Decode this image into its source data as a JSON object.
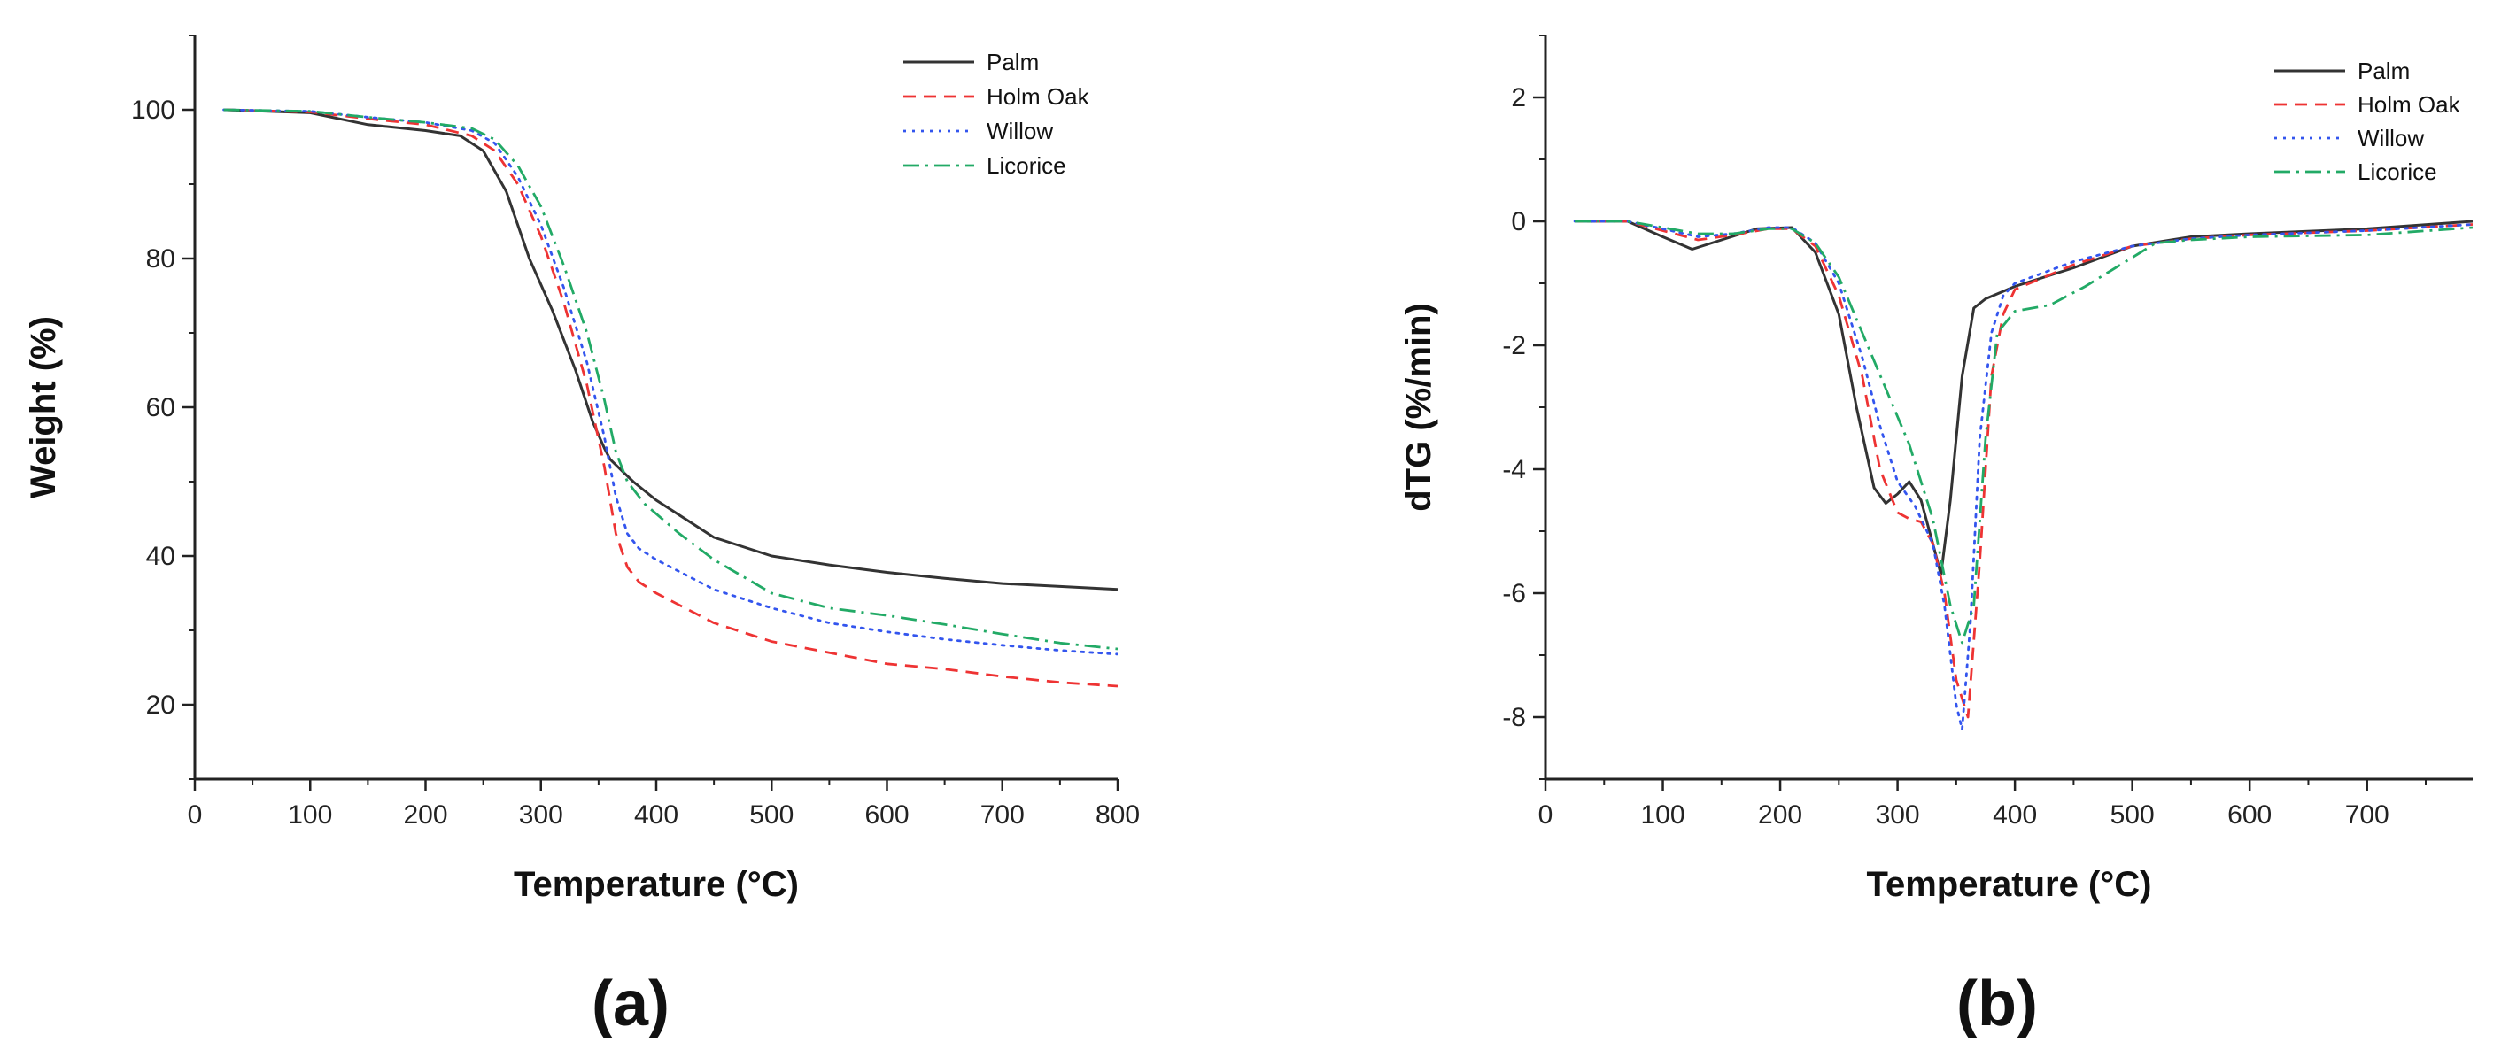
{
  "chart_data": [
    {
      "type": "line",
      "panel_label": "(a)",
      "xlabel": "Temperature (°C)",
      "ylabel": "Weight (%)",
      "xlim": [
        0,
        800
      ],
      "ylim": [
        10,
        110
      ],
      "xticks": [
        0,
        100,
        200,
        300,
        400,
        500,
        600,
        700,
        800
      ],
      "yticks": [
        20,
        40,
        60,
        80,
        100
      ],
      "grid": false,
      "legend_position": "top-right",
      "series": [
        {
          "name": "Palm",
          "color": "#333333",
          "dash": "solid",
          "x": [
            25,
            100,
            150,
            200,
            230,
            250,
            270,
            290,
            310,
            330,
            345,
            355,
            360,
            370,
            380,
            400,
            450,
            500,
            550,
            600,
            650,
            700,
            750,
            800
          ],
          "y": [
            100,
            99.6,
            98.0,
            97.2,
            96.5,
            94.5,
            89.0,
            80.0,
            73.0,
            65.0,
            58.0,
            54.5,
            53.0,
            51.5,
            50.0,
            47.5,
            42.5,
            40.0,
            38.8,
            37.8,
            37.0,
            36.3,
            35.9,
            35.5
          ]
        },
        {
          "name": "Holm Oak",
          "color": "#ee3333",
          "dash": "dashed",
          "x": [
            25,
            100,
            150,
            200,
            240,
            260,
            280,
            300,
            320,
            340,
            355,
            365,
            375,
            385,
            400,
            450,
            500,
            550,
            600,
            650,
            700,
            750,
            800
          ],
          "y": [
            100,
            99.7,
            98.8,
            98.0,
            96.5,
            94.5,
            90.0,
            83.0,
            74.0,
            63.0,
            52.0,
            43.0,
            38.5,
            36.5,
            35.0,
            31.0,
            28.5,
            27.0,
            25.5,
            24.8,
            23.8,
            23.0,
            22.5
          ]
        },
        {
          "name": "Willow",
          "color": "#3355ee",
          "dash": "dotted",
          "x": [
            25,
            100,
            150,
            200,
            240,
            260,
            280,
            300,
            320,
            340,
            355,
            365,
            375,
            385,
            400,
            450,
            500,
            550,
            600,
            650,
            700,
            750,
            800
          ],
          "y": [
            100,
            99.8,
            99.0,
            98.3,
            97.2,
            95.5,
            91.0,
            84.5,
            76.0,
            66.0,
            56.0,
            48.0,
            43.0,
            41.0,
            39.5,
            35.5,
            33.0,
            31.0,
            29.8,
            28.8,
            28.0,
            27.3,
            26.8
          ]
        },
        {
          "name": "Licorice",
          "color": "#22aa66",
          "dash": "dashdot",
          "x": [
            25,
            100,
            150,
            200,
            240,
            260,
            280,
            300,
            320,
            340,
            355,
            365,
            375,
            390,
            420,
            450,
            500,
            550,
            600,
            650,
            700,
            750,
            800
          ],
          "y": [
            100,
            99.8,
            99.0,
            98.3,
            97.5,
            96.0,
            92.5,
            87.0,
            79.0,
            70.0,
            61.0,
            54.0,
            50.0,
            47.0,
            43.0,
            39.5,
            35.0,
            33.0,
            32.0,
            30.8,
            29.5,
            28.3,
            27.5
          ]
        }
      ]
    },
    {
      "type": "line",
      "panel_label": "(b)",
      "xlabel": "Temperature (°C)",
      "ylabel": "dTG (%/min)",
      "xlim": [
        0,
        790
      ],
      "ylim": [
        -9,
        3
      ],
      "xticks": [
        0,
        100,
        200,
        300,
        400,
        500,
        600,
        700
      ],
      "yticks": [
        -8,
        -6,
        -4,
        -2,
        0,
        2
      ],
      "grid": false,
      "legend_position": "top-right",
      "series": [
        {
          "name": "Palm",
          "color": "#333333",
          "dash": "solid",
          "x": [
            25,
            70,
            100,
            125,
            150,
            180,
            210,
            230,
            250,
            265,
            280,
            290,
            300,
            310,
            320,
            330,
            337,
            345,
            355,
            365,
            375,
            400,
            450,
            500,
            550,
            600,
            700,
            790
          ],
          "y": [
            0,
            0,
            -0.25,
            -0.45,
            -0.3,
            -0.12,
            -0.1,
            -0.5,
            -1.5,
            -3.0,
            -4.3,
            -4.55,
            -4.4,
            -4.2,
            -4.5,
            -5.2,
            -5.7,
            -4.5,
            -2.5,
            -1.4,
            -1.25,
            -1.05,
            -0.75,
            -0.4,
            -0.25,
            -0.2,
            -0.12,
            0
          ]
        },
        {
          "name": "Holm Oak",
          "color": "#ee3333",
          "dash": "dashed",
          "x": [
            25,
            70,
            100,
            130,
            160,
            190,
            210,
            230,
            250,
            270,
            285,
            300,
            310,
            320,
            330,
            340,
            350,
            360,
            370,
            380,
            390,
            400,
            450,
            500,
            550,
            600,
            700,
            790
          ],
          "y": [
            0,
            0,
            -0.15,
            -0.3,
            -0.22,
            -0.12,
            -0.12,
            -0.4,
            -1.2,
            -2.5,
            -4.0,
            -4.7,
            -4.8,
            -4.85,
            -5.2,
            -6.0,
            -7.4,
            -8.0,
            -5.5,
            -2.5,
            -1.5,
            -1.1,
            -0.7,
            -0.4,
            -0.28,
            -0.22,
            -0.15,
            -0.05
          ]
        },
        {
          "name": "Willow",
          "color": "#3355ee",
          "dash": "dotted",
          "x": [
            25,
            70,
            100,
            130,
            160,
            190,
            210,
            230,
            250,
            270,
            285,
            300,
            315,
            330,
            340,
            350,
            355,
            362,
            370,
            380,
            390,
            400,
            450,
            500,
            550,
            600,
            700,
            790
          ],
          "y": [
            0,
            0,
            -0.12,
            -0.25,
            -0.2,
            -0.1,
            -0.1,
            -0.35,
            -1.0,
            -2.2,
            -3.3,
            -4.2,
            -4.6,
            -5.2,
            -6.2,
            -7.8,
            -8.2,
            -6.5,
            -3.5,
            -1.8,
            -1.2,
            -1.0,
            -0.65,
            -0.4,
            -0.28,
            -0.22,
            -0.15,
            -0.05
          ]
        },
        {
          "name": "Licorice",
          "color": "#22aa66",
          "dash": "dashdot",
          "x": [
            25,
            70,
            100,
            130,
            160,
            190,
            210,
            230,
            250,
            270,
            290,
            310,
            330,
            345,
            355,
            365,
            375,
            385,
            400,
            430,
            460,
            490,
            520,
            550,
            600,
            700,
            790
          ],
          "y": [
            0,
            0,
            -0.1,
            -0.2,
            -0.2,
            -0.12,
            -0.12,
            -0.35,
            -0.9,
            -1.8,
            -2.7,
            -3.6,
            -4.8,
            -6.2,
            -6.8,
            -6.2,
            -3.5,
            -1.8,
            -1.45,
            -1.35,
            -1.05,
            -0.7,
            -0.35,
            -0.3,
            -0.25,
            -0.22,
            -0.1
          ]
        }
      ]
    }
  ]
}
